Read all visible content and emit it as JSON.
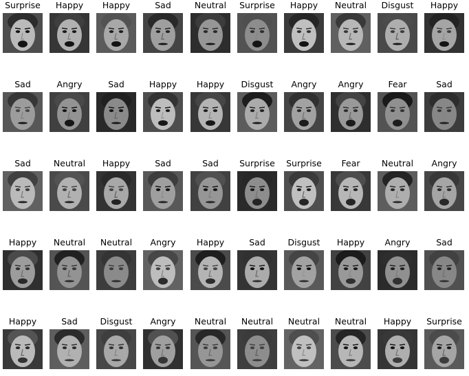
{
  "grid": {
    "rows": [
      [
        "Surprise",
        "Happy",
        "Happy",
        "Sad",
        "Neutral",
        "Surprise",
        "Happy",
        "Neutral",
        "Disgust",
        "Happy"
      ],
      [
        "Sad",
        "Angry",
        "Sad",
        "Happy",
        "Happy",
        "Disgust",
        "Angry",
        "Angry",
        "Fear",
        "Sad"
      ],
      [
        "Sad",
        "Neutral",
        "Happy",
        "Sad",
        "Sad",
        "Surprise",
        "Surprise",
        "Fear",
        "Neutral",
        "Angry"
      ],
      [
        "Happy",
        "Neutral",
        "Neutral",
        "Angry",
        "Happy",
        "Sad",
        "Disgust",
        "Happy",
        "Angry",
        "Sad"
      ],
      [
        "Happy",
        "Sad",
        "Disgust",
        "Angry",
        "Neutral",
        "Neutral",
        "Neutral",
        "Neutral",
        "Happy",
        "Surprise"
      ]
    ],
    "image_style": "grayscale face photo"
  }
}
